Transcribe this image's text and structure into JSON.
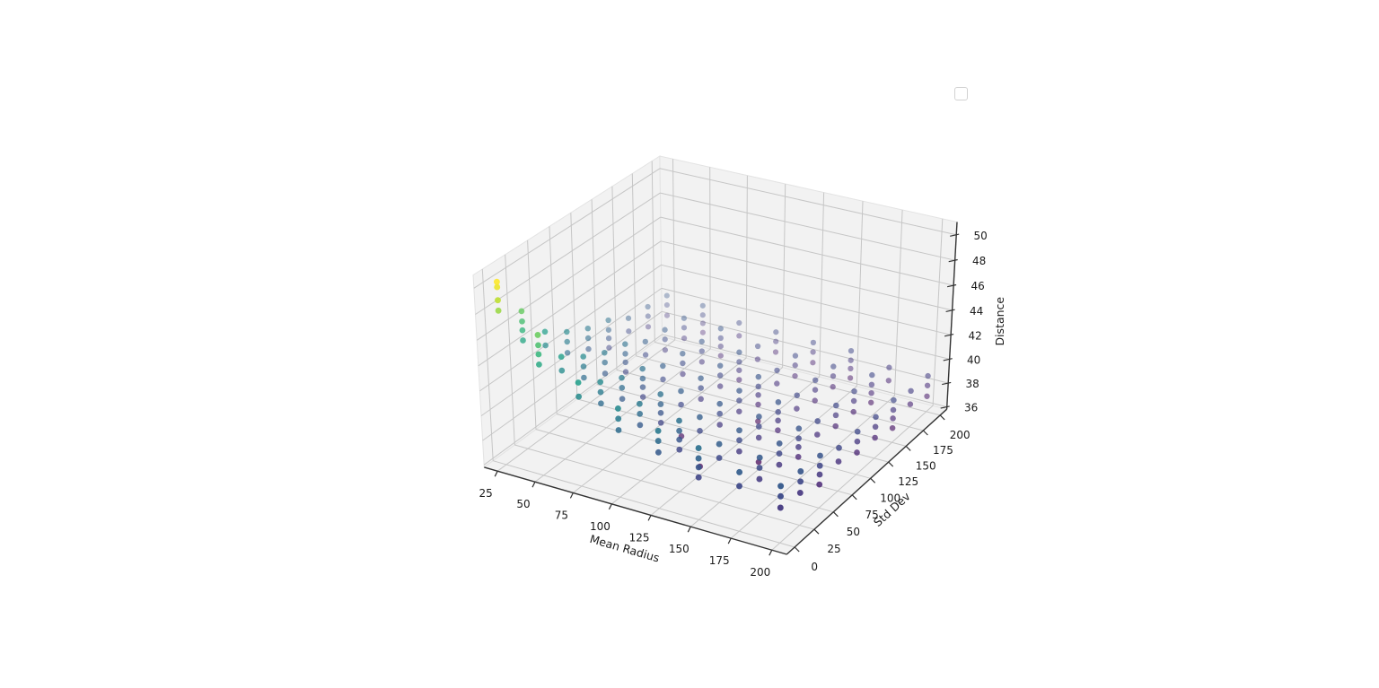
{
  "figure": {
    "background": "#ffffff",
    "legend": {
      "present": true,
      "entries": []
    }
  },
  "colors": {
    "pane": "#f2f2f2",
    "pane_edge": "#e3e3e3",
    "grid": "#c6c6c6",
    "axis": "#333333",
    "tick_label": "#1a1a1a",
    "viridis_stops": [
      "#440154",
      "#482878",
      "#3e4989",
      "#31688e",
      "#26828e",
      "#1f9e89",
      "#35b779",
      "#6ece58",
      "#b5de2b",
      "#fde725"
    ]
  },
  "chart_data": {
    "type": "scatter",
    "projection": "3d",
    "title": "",
    "xlabel": "Mean Radius",
    "ylabel": "Std Dev",
    "zlabel": "Distance",
    "xticks": [
      25,
      50,
      75,
      100,
      125,
      150,
      175,
      200
    ],
    "yticks": [
      0,
      25,
      50,
      75,
      100,
      125,
      150,
      175,
      200
    ],
    "zticks": [
      36,
      38,
      40,
      42,
      44,
      46,
      48,
      50
    ],
    "xlim": [
      16,
      209
    ],
    "ylim": [
      -10,
      210
    ],
    "zlim": [
      35.8,
      51.0
    ],
    "grid": true,
    "colormap": "viridis",
    "color_by": "z",
    "view": {
      "azim": -60,
      "elev": 30,
      "proj_type": "persp"
    },
    "stacks_format": "[mean_radius, std_dev, [distance values]]",
    "stacks": [
      [
        25,
        0,
        [
          48.1,
          48.9,
          49.9,
          50.3
        ]
      ],
      [
        25,
        25,
        [
          44.6,
          45.4,
          46.1,
          46.9
        ]
      ],
      [
        25,
        50,
        [
          43.0,
          44.1
        ]
      ],
      [
        25,
        75,
        [
          41.2,
          42.1,
          42.9
        ]
      ],
      [
        25,
        100,
        [
          40.3,
          41.2,
          42.0
        ]
      ],
      [
        25,
        125,
        [
          39.2,
          40.0,
          40.7,
          41.5
        ]
      ],
      [
        25,
        150,
        [
          39.4,
          40.5
        ]
      ],
      [
        25,
        175,
        [
          38.6,
          39.5,
          40.3
        ]
      ],
      [
        25,
        200,
        [
          38.4,
          39.3,
          40.1
        ]
      ],
      [
        50,
        0,
        [
          44.7,
          45.5,
          46.2,
          47.0
        ]
      ],
      [
        50,
        25,
        [
          43.0,
          44.1
        ]
      ],
      [
        50,
        50,
        [
          41.2,
          42.1,
          42.9
        ]
      ],
      [
        50,
        75,
        [
          40.3,
          41.2,
          42.0
        ]
      ],
      [
        50,
        100,
        [
          39.2,
          40.0,
          40.7,
          41.5
        ]
      ],
      [
        50,
        125,
        [
          39.4,
          40.5
        ]
      ],
      [
        50,
        150,
        [
          38.6,
          39.5,
          40.3
        ]
      ],
      [
        50,
        175,
        [
          38.4,
          39.3,
          40.1
        ]
      ],
      [
        50,
        200,
        [
          37.7,
          38.5,
          39.2,
          40.0
        ]
      ],
      [
        75,
        0,
        [
          43.0,
          44.1
        ]
      ],
      [
        75,
        25,
        [
          41.2,
          42.1,
          42.9
        ]
      ],
      [
        75,
        50,
        [
          40.3,
          41.2,
          42.0
        ]
      ],
      [
        75,
        75,
        [
          39.2,
          40.0,
          40.7,
          41.5
        ]
      ],
      [
        75,
        100,
        [
          39.4,
          40.5
        ]
      ],
      [
        75,
        125,
        [
          38.6,
          39.5,
          40.3
        ]
      ],
      [
        75,
        150,
        [
          38.4,
          39.3,
          40.1
        ]
      ],
      [
        75,
        175,
        [
          37.7,
          38.5,
          39.2,
          40.0
        ]
      ],
      [
        75,
        200,
        [
          38.2,
          39.3
        ]
      ],
      [
        100,
        0,
        [
          41.2,
          42.1,
          42.9
        ]
      ],
      [
        100,
        25,
        [
          40.3,
          41.2,
          42.0
        ]
      ],
      [
        100,
        50,
        [
          39.2,
          40.0,
          40.7,
          41.5
        ]
      ],
      [
        100,
        75,
        [
          36.8,
          39.4,
          40.5
        ]
      ],
      [
        100,
        100,
        [
          38.6,
          39.5,
          40.3
        ]
      ],
      [
        100,
        125,
        [
          38.4,
          39.3,
          40.1
        ]
      ],
      [
        100,
        150,
        [
          37.7,
          38.5,
          39.2,
          40.0
        ]
      ],
      [
        100,
        175,
        [
          38.2,
          39.3
        ]
      ],
      [
        100,
        200,
        [
          37.6,
          38.5,
          39.3
        ]
      ],
      [
        125,
        0,
        [
          40.3,
          41.2,
          42.0
        ]
      ],
      [
        125,
        25,
        [
          39.2,
          40.0,
          40.7,
          41.5
        ]
      ],
      [
        125,
        50,
        [
          36.5,
          39.4,
          40.5
        ]
      ],
      [
        125,
        75,
        [
          38.6,
          39.5,
          40.3
        ]
      ],
      [
        125,
        100,
        [
          38.4,
          39.3,
          40.1
        ]
      ],
      [
        125,
        125,
        [
          36.3,
          37.7,
          38.5,
          39.2,
          40.0
        ]
      ],
      [
        125,
        150,
        [
          38.2,
          39.3
        ]
      ],
      [
        125,
        175,
        [
          37.6,
          38.5,
          39.3
        ]
      ],
      [
        125,
        200,
        [
          37.5,
          38.4,
          39.2
        ]
      ],
      [
        150,
        0,
        [
          39.2,
          40.0,
          40.7,
          41.5
        ]
      ],
      [
        150,
        25,
        [
          39.4,
          40.5
        ]
      ],
      [
        150,
        50,
        [
          38.6,
          39.5,
          40.3
        ]
      ],
      [
        150,
        75,
        [
          36.4,
          38.4,
          39.3,
          40.1
        ]
      ],
      [
        150,
        100,
        [
          37.7,
          38.5,
          39.2,
          40.0
        ]
      ],
      [
        150,
        125,
        [
          38.2,
          39.3
        ]
      ],
      [
        150,
        150,
        [
          37.6,
          38.5,
          39.3
        ]
      ],
      [
        150,
        175,
        [
          37.5,
          38.4,
          39.2
        ]
      ],
      [
        150,
        200,
        [
          37.0,
          37.8,
          38.5,
          39.3
        ]
      ],
      [
        175,
        0,
        [
          39.4,
          40.5
        ]
      ],
      [
        175,
        25,
        [
          38.6,
          39.5,
          40.3
        ]
      ],
      [
        175,
        50,
        [
          38.4,
          39.3,
          40.1
        ]
      ],
      [
        175,
        75,
        [
          37.7,
          38.5,
          39.2,
          40.0
        ]
      ],
      [
        175,
        100,
        [
          38.2,
          39.3
        ]
      ],
      [
        175,
        125,
        [
          37.6,
          38.5,
          39.3
        ]
      ],
      [
        175,
        150,
        [
          37.5,
          38.4,
          39.2
        ]
      ],
      [
        175,
        175,
        [
          37.0,
          37.8,
          38.5,
          39.3
        ]
      ],
      [
        175,
        200,
        [
          37.6,
          38.7
        ]
      ],
      [
        200,
        0,
        [
          38.6,
          39.5,
          40.3
        ]
      ],
      [
        200,
        25,
        [
          38.4,
          39.3,
          40.1
        ]
      ],
      [
        200,
        50,
        [
          37.7,
          38.5,
          39.2,
          40.0
        ]
      ],
      [
        200,
        75,
        [
          38.2,
          39.3
        ]
      ],
      [
        200,
        100,
        [
          37.6,
          38.5,
          39.3
        ]
      ],
      [
        200,
        125,
        [
          37.5,
          38.4,
          39.2
        ]
      ],
      [
        200,
        150,
        [
          37.0,
          37.8,
          38.5,
          39.3
        ]
      ],
      [
        200,
        175,
        [
          37.7,
          38.8
        ]
      ],
      [
        200,
        200,
        [
          37.1,
          38.0,
          38.8
        ]
      ]
    ]
  }
}
